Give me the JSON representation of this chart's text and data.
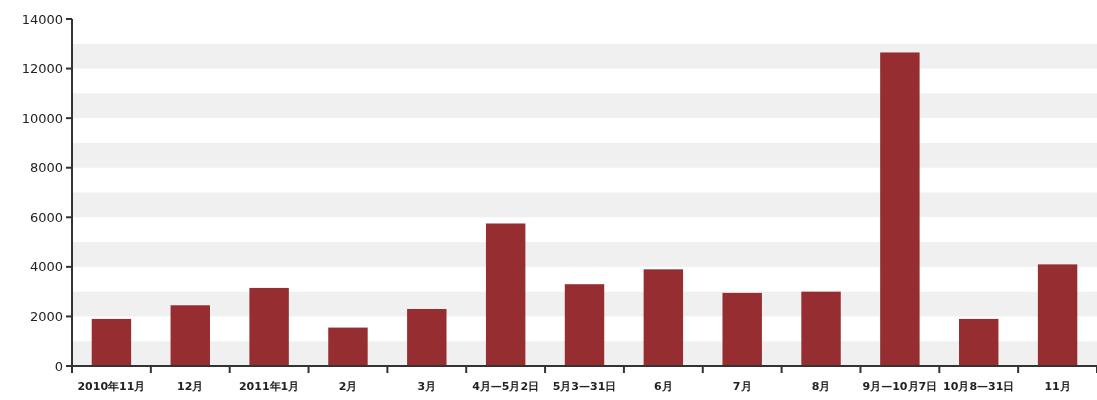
{
  "chart_data": {
    "type": "bar",
    "categories": [
      "2010年11月",
      "12月",
      "2011年1月",
      "2月",
      "3月",
      "4月—5月2日",
      "5月3—31日",
      "6月",
      "7月",
      "8月",
      "9月—10月7日",
      "10月8—31日",
      "11月"
    ],
    "values": [
      1900,
      2450,
      3150,
      1550,
      2300,
      5750,
      3300,
      3900,
      2950,
      3000,
      12650,
      1900,
      4100
    ],
    "color": "#962d30",
    "ylim": [
      0,
      14000
    ],
    "yticks": [
      0,
      2000,
      4000,
      6000,
      8000,
      10000,
      12000,
      14000
    ],
    "bands": [
      {
        "axis": "y",
        "from": 0,
        "to": 1000,
        "color": "#f0f0f0"
      },
      {
        "axis": "y",
        "from": 2000,
        "to": 3000,
        "color": "#f0f0f0"
      },
      {
        "axis": "y",
        "from": 4000,
        "to": 5000,
        "color": "#f0f0f0"
      },
      {
        "axis": "y",
        "from": 6000,
        "to": 7000,
        "color": "#f0f0f0"
      },
      {
        "axis": "y",
        "from": 8000,
        "to": 9000,
        "color": "#f0f0f0"
      },
      {
        "axis": "y",
        "from": 10000,
        "to": 11000,
        "color": "#f0f0f0"
      },
      {
        "axis": "y",
        "from": 12000,
        "to": 13000,
        "color": "#f0f0f0"
      }
    ]
  }
}
